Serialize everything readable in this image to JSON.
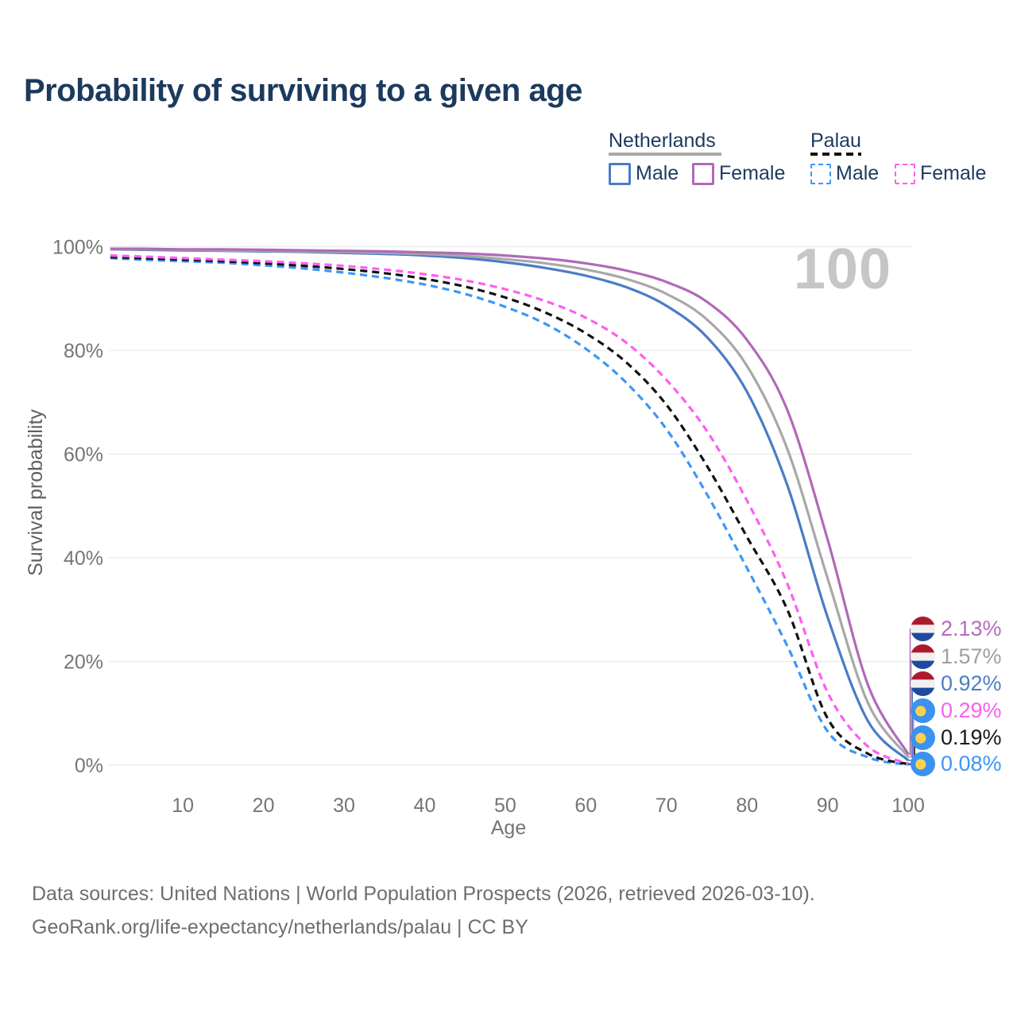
{
  "title": "Probability of surviving to a given age",
  "watermark": "100",
  "legend": {
    "groups": [
      {
        "label": "Netherlands",
        "line_style": "solid",
        "line_color": "#a8a8a8",
        "items": [
          {
            "label": "Male",
            "color": "#4a7cc7"
          },
          {
            "label": "Female",
            "color": "#b06ab8"
          }
        ]
      },
      {
        "label": "Palau",
        "line_style": "dashed",
        "line_color": "#111111",
        "items": [
          {
            "label": "Male",
            "color": "#3d96f7"
          },
          {
            "label": "Female",
            "color": "#fc5ff0"
          }
        ]
      }
    ]
  },
  "axes": {
    "x_label": "Age",
    "y_label": "Survival probability",
    "x_ticks": [
      10,
      20,
      30,
      40,
      50,
      60,
      70,
      80,
      90,
      100
    ],
    "y_ticks": [
      {
        "label": "0%",
        "value": 0
      },
      {
        "label": "20%",
        "value": 20
      },
      {
        "label": "40%",
        "value": 40
      },
      {
        "label": "60%",
        "value": 60
      },
      {
        "label": "80%",
        "value": 80
      },
      {
        "label": "100%",
        "value": 100
      }
    ]
  },
  "chart_data": {
    "type": "line",
    "title": "Probability of surviving to a given age",
    "xlabel": "Age",
    "ylabel": "Survival probability",
    "xlim": [
      1,
      100
    ],
    "ylim": [
      0,
      100
    ],
    "grid": "horizontal",
    "legend_position": "top-right",
    "x": [
      1,
      5,
      10,
      15,
      20,
      25,
      30,
      35,
      40,
      45,
      50,
      55,
      60,
      65,
      70,
      75,
      80,
      85,
      90,
      95,
      100
    ],
    "series": [
      {
        "name": "Netherlands Female",
        "country": "Netherlands",
        "sex": "female",
        "color": "#b06ab8",
        "line": "solid",
        "flag": "netherlands",
        "end_label": "2.13%",
        "label_color": "#b56cbb",
        "values": [
          99.6,
          99.6,
          99.5,
          99.5,
          99.4,
          99.3,
          99.2,
          99.1,
          98.9,
          98.7,
          98.3,
          97.7,
          96.8,
          95.4,
          93.2,
          89.4,
          82.0,
          68.5,
          43.5,
          15.5,
          2.13
        ]
      },
      {
        "name": "Netherlands (both sexes)",
        "country": "Netherlands",
        "sex": "total",
        "color": "#a8a8a8",
        "line": "solid",
        "flag": "netherlands",
        "end_label": "1.57%",
        "label_color": "#9e9e9e",
        "values": [
          99.5,
          99.5,
          99.4,
          99.3,
          99.2,
          99.1,
          99.0,
          98.8,
          98.6,
          98.2,
          97.6,
          96.8,
          95.6,
          93.8,
          90.9,
          86.0,
          77.0,
          61.0,
          36.0,
          12.0,
          1.57
        ]
      },
      {
        "name": "Netherlands Male",
        "country": "Netherlands",
        "sex": "male",
        "color": "#4a7cc7",
        "line": "solid",
        "flag": "netherlands",
        "end_label": "0.92%",
        "label_color": "#4a7fc3",
        "values": [
          99.5,
          99.4,
          99.3,
          99.2,
          99.1,
          99.0,
          98.8,
          98.6,
          98.3,
          97.8,
          97.0,
          95.9,
          94.4,
          92.2,
          88.6,
          82.6,
          72.0,
          54.0,
          28.5,
          8.5,
          0.92
        ]
      },
      {
        "name": "Palau Female",
        "country": "Palau",
        "sex": "female",
        "color": "#fc5ff0",
        "line": "dashed",
        "flag": "palau",
        "end_label": "0.29%",
        "label_color": "#fc5ff0",
        "values": [
          98.3,
          98.1,
          97.8,
          97.5,
          97.2,
          96.8,
          96.3,
          95.6,
          94.7,
          93.5,
          91.8,
          89.5,
          86.3,
          81.5,
          74.3,
          64.5,
          51.0,
          35.0,
          14.0,
          3.6,
          0.29
        ]
      },
      {
        "name": "Palau (both sexes)",
        "country": "Palau",
        "sex": "total",
        "color": "#111111",
        "line": "dashed",
        "flag": "palau",
        "end_label": "0.19%",
        "label_color": "#1a1a1a",
        "values": [
          98.0,
          97.8,
          97.5,
          97.2,
          96.8,
          96.3,
          95.7,
          94.9,
          93.8,
          92.3,
          90.2,
          87.3,
          83.3,
          77.7,
          69.5,
          57.8,
          44.0,
          30.0,
          9.0,
          2.2,
          0.19
        ]
      },
      {
        "name": "Palau Male",
        "country": "Palau",
        "sex": "male",
        "color": "#3d96f7",
        "line": "dashed",
        "flag": "palau",
        "end_label": "0.08%",
        "label_color": "#3d96f7",
        "values": [
          97.8,
          97.5,
          97.2,
          96.9,
          96.4,
          95.8,
          95.0,
          94.0,
          92.7,
          90.9,
          88.4,
          85.1,
          80.3,
          73.8,
          64.8,
          52.3,
          38.0,
          23.0,
          6.5,
          1.5,
          0.08
        ]
      }
    ]
  },
  "source": {
    "line1": "Data sources: United Nations | World Population Prospects (2026, retrieved 2026-03-10).",
    "line2": "GeoRank.org/life-expectancy/netherlands/palau | CC BY"
  }
}
